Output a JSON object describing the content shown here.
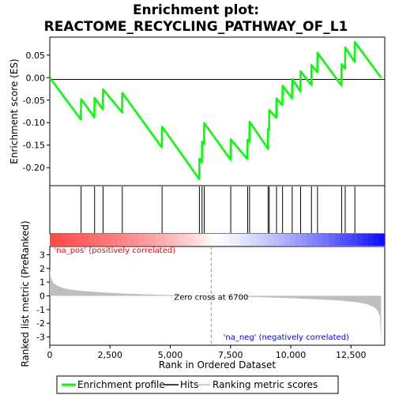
{
  "chart_data": {
    "type": "line",
    "title_line1": "Enrichment plot:",
    "title_line2": "REACTOME_RECYCLING_PATHWAY_OF_L1",
    "es_panel": {
      "ylabel": "Enrichment score (ES)",
      "ylim": [
        -0.24,
        0.09
      ],
      "yticks": [
        0.05,
        0.0,
        -0.05,
        -0.1,
        -0.15,
        -0.2
      ],
      "ytick_labels": [
        "0.05",
        "0.00",
        "-0.05",
        "-0.10",
        "-0.15",
        "-0.20"
      ],
      "series": [
        {
          "name": "Enrichment profile",
          "color": "#00ff00",
          "x": [
            0,
            1290,
            1300,
            1850,
            1860,
            2200,
            2210,
            3000,
            3010,
            4650,
            4660,
            6200,
            6210,
            6310,
            6320,
            6400,
            6410,
            7500,
            7510,
            8200,
            8210,
            8280,
            8290,
            9050,
            9060,
            9100,
            9110,
            9400,
            9410,
            9650,
            9660,
            10050,
            10060,
            10400,
            10410,
            10850,
            10860,
            11100,
            11110,
            12100,
            12110,
            12250,
            12260,
            12650,
            12660,
            13750
          ],
          "y": [
            0.0,
            -0.093,
            -0.048,
            -0.088,
            -0.045,
            -0.07,
            -0.026,
            -0.077,
            -0.034,
            -0.155,
            -0.109,
            -0.225,
            -0.18,
            -0.188,
            -0.142,
            -0.147,
            -0.101,
            -0.182,
            -0.137,
            -0.181,
            -0.138,
            -0.142,
            -0.098,
            -0.158,
            -0.114,
            -0.116,
            -0.072,
            -0.089,
            -0.046,
            -0.061,
            -0.018,
            -0.046,
            -0.003,
            -0.03,
            0.014,
            -0.016,
            0.028,
            0.012,
            0.055,
            -0.017,
            0.03,
            0.02,
            0.067,
            0.035,
            0.079,
            0.0
          ]
        }
      ]
    },
    "hits": {
      "name": "Hits",
      "x": [
        1300,
        1860,
        2210,
        3010,
        4660,
        6210,
        6320,
        6410,
        7510,
        8210,
        8290,
        9060,
        9110,
        9410,
        9660,
        10060,
        10410,
        10860,
        11110,
        12110,
        12260,
        12660
      ]
    },
    "metric_panel": {
      "ylabel": "Ranked list metric (PreRanked)",
      "xlabel": "Rank in Ordered Dataset",
      "xlim": [
        0,
        13900
      ],
      "ylim": [
        -3.6,
        3.6
      ],
      "xticks": [
        0,
        2500,
        5000,
        7500,
        10000,
        12500
      ],
      "xtick_labels": [
        "0",
        "2,500",
        "5,000",
        "7,500",
        "10,000",
        "12,500"
      ],
      "yticks": [
        3,
        2,
        1,
        0,
        -1,
        -2,
        -3
      ],
      "ytick_labels": [
        "3",
        "2",
        "1",
        "0",
        "-1",
        "-2",
        "-3"
      ],
      "series": {
        "name": "Ranking metric scores",
        "color": "#bebebe",
        "x": [
          0,
          50,
          150,
          300,
          500,
          800,
          1200,
          2000,
          3000,
          4500,
          6000,
          6700,
          8000,
          9500,
          11000,
          12000,
          12800,
          13200,
          13450,
          13600,
          13700,
          13750
        ],
        "y": [
          1.9,
          1.3,
          0.95,
          0.75,
          0.6,
          0.48,
          0.38,
          0.27,
          0.17,
          0.08,
          0.02,
          0.0,
          -0.06,
          -0.14,
          -0.24,
          -0.34,
          -0.48,
          -0.62,
          -0.82,
          -1.05,
          -1.5,
          -3.4
        ]
      },
      "zero_cross_label": "Zero cross at 6700",
      "zero_cross_x": 6700,
      "pos_label": "'na_pos' (positively correlated)",
      "neg_label": "'na_neg' (negatively correlated)",
      "pos_color": "#ff0000",
      "neg_color": "#0000ff"
    },
    "legend": [
      {
        "label": "Enrichment profile",
        "color": "#00ff00"
      },
      {
        "label": "Hits",
        "color": "#000000"
      },
      {
        "label": "Ranking metric scores",
        "color": "#bebebe"
      }
    ]
  }
}
